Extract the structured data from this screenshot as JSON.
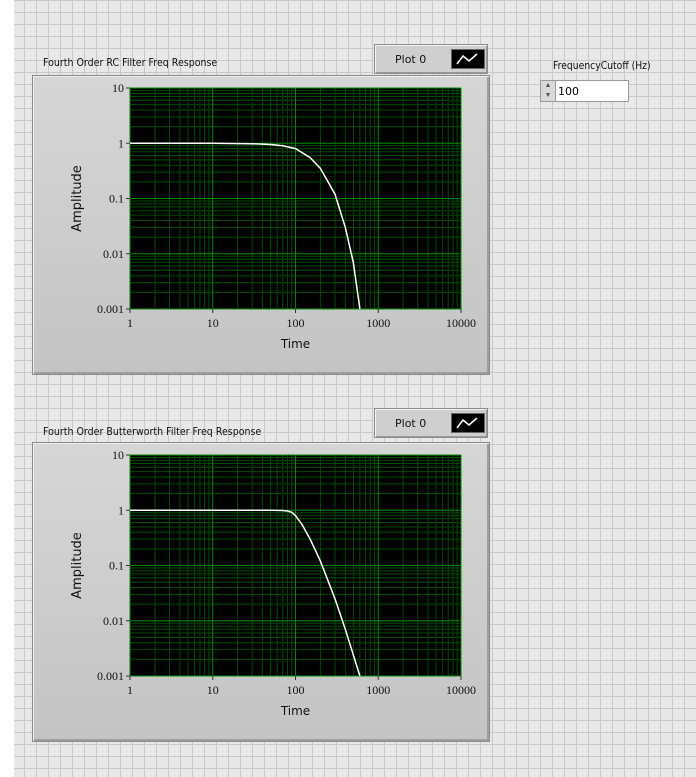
{
  "frequency_control": {
    "label": "FrequencyCutoff (Hz)",
    "value": "100"
  },
  "graphs": [
    {
      "title": "Fourth Order RC Filter Freq Response",
      "legend_label": "Plot 0",
      "xlabel": "Time",
      "ylabel": "Amplitude",
      "x_ticks": [
        "1",
        "10",
        "100",
        "1000",
        "10000"
      ],
      "y_ticks": [
        "10",
        "1",
        "0.1",
        "0.01",
        "0.001"
      ]
    },
    {
      "title": "Fourth Order Butterworth Filter Freq Response",
      "legend_label": "Plot 0",
      "xlabel": "Time",
      "ylabel": "Amplitude",
      "x_ticks": [
        "1",
        "10",
        "100",
        "1000",
        "10000"
      ],
      "y_ticks": [
        "10",
        "1",
        "0.1",
        "0.01",
        "0.001"
      ]
    }
  ],
  "colors": {
    "plot_background": "#000000",
    "grid_major": "#008c00",
    "grid_minor": "#004d00",
    "trace": "#ffffff"
  },
  "chart_data": [
    {
      "type": "line",
      "title": "Fourth Order RC Filter Freq Response",
      "xlabel": "Time",
      "ylabel": "Amplitude",
      "x_scale": "log",
      "y_scale": "log",
      "xlim": [
        1,
        10000
      ],
      "ylim": [
        0.001,
        10
      ],
      "grid": true,
      "legend": "top-right",
      "series": [
        {
          "name": "Plot 0",
          "x": [
            1,
            10,
            30,
            50,
            70,
            100,
            150,
            200,
            300,
            400,
            500,
            600
          ],
          "y": [
            1.0,
            0.998,
            0.98,
            0.95,
            0.9,
            0.8,
            0.55,
            0.35,
            0.12,
            0.03,
            0.007,
            0.001
          ]
        }
      ]
    },
    {
      "type": "line",
      "title": "Fourth Order Butterworth Filter Freq Response",
      "xlabel": "Time",
      "ylabel": "Amplitude",
      "x_scale": "log",
      "y_scale": "log",
      "xlim": [
        1,
        10000
      ],
      "ylim": [
        0.001,
        10
      ],
      "grid": true,
      "legend": "top-right",
      "series": [
        {
          "name": "Plot 0",
          "x": [
            1,
            10,
            50,
            70,
            80,
            90,
            100,
            120,
            150,
            200,
            300,
            400,
            600
          ],
          "y": [
            1.0,
            1.0,
            1.0,
            0.99,
            0.97,
            0.92,
            0.8,
            0.55,
            0.3,
            0.12,
            0.025,
            0.007,
            0.001
          ]
        }
      ]
    }
  ]
}
